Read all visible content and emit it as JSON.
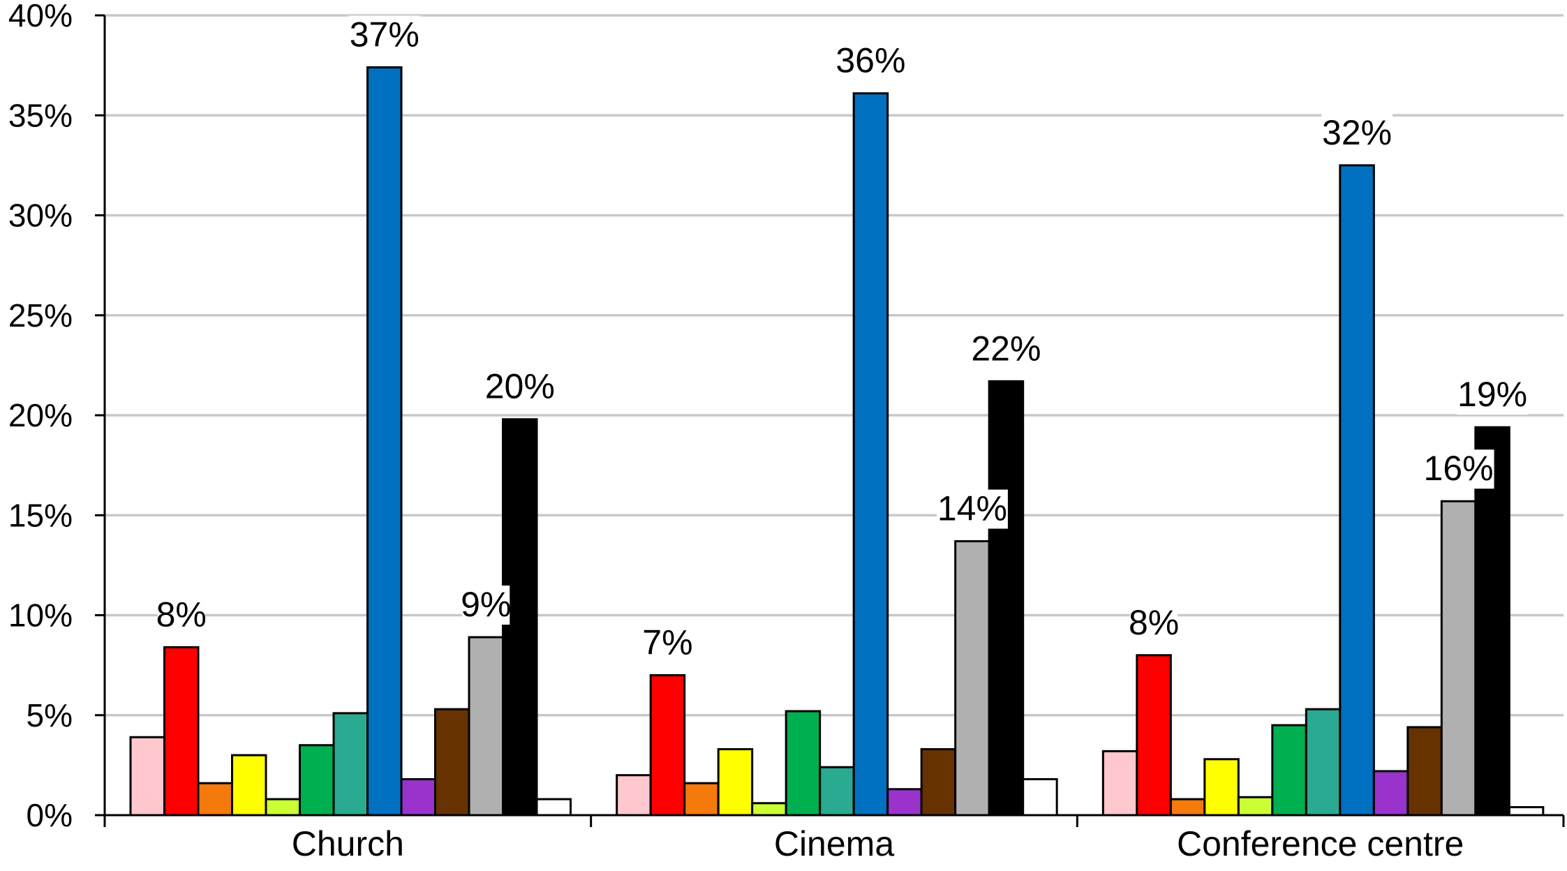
{
  "chart_data": {
    "type": "bar",
    "categories": [
      "Church",
      "Cinema",
      "Conference centre"
    ],
    "series": [
      {
        "color": "#FFC7CE",
        "values": [
          3.9,
          2.0,
          3.2
        ]
      },
      {
        "color": "#FF0000",
        "values": [
          8.4,
          7.0,
          8.0
        ]
      },
      {
        "color": "#F47A0C",
        "values": [
          1.6,
          1.6,
          0.8
        ]
      },
      {
        "color": "#FFFF00",
        "values": [
          3.0,
          3.3,
          2.8
        ]
      },
      {
        "color": "#CCFF33",
        "values": [
          0.8,
          0.6,
          0.9
        ]
      },
      {
        "color": "#00B050",
        "values": [
          3.5,
          5.2,
          4.5
        ]
      },
      {
        "color": "#2AAA90",
        "values": [
          5.1,
          2.4,
          5.3
        ]
      },
      {
        "color": "#0070C0",
        "values": [
          37.4,
          36.1,
          32.5
        ]
      },
      {
        "color": "#9933CC",
        "values": [
          1.8,
          1.3,
          2.2
        ]
      },
      {
        "color": "#663300",
        "values": [
          5.3,
          3.3,
          4.4
        ]
      },
      {
        "color": "#B0B0B0",
        "values": [
          8.9,
          13.7,
          15.7
        ]
      },
      {
        "color": "#000000",
        "values": [
          19.8,
          21.7,
          19.4
        ]
      },
      {
        "color": "#FFFFFF",
        "values": [
          0.8,
          1.8,
          0.4
        ]
      }
    ],
    "data_labels": [
      {
        "category": 0,
        "series": 1,
        "text": "8%"
      },
      {
        "category": 0,
        "series": 7,
        "text": "37%"
      },
      {
        "category": 0,
        "series": 10,
        "text": "9%"
      },
      {
        "category": 0,
        "series": 11,
        "text": "20%"
      },
      {
        "category": 1,
        "series": 1,
        "text": "7%"
      },
      {
        "category": 1,
        "series": 7,
        "text": "36%"
      },
      {
        "category": 1,
        "series": 10,
        "text": "14%"
      },
      {
        "category": 1,
        "series": 11,
        "text": "22%"
      },
      {
        "category": 2,
        "series": 1,
        "text": "8%"
      },
      {
        "category": 2,
        "series": 7,
        "text": "32%"
      },
      {
        "category": 2,
        "series": 10,
        "text": "16%"
      },
      {
        "category": 2,
        "series": 11,
        "text": "19%"
      }
    ],
    "y_ticks": [
      "0%",
      "5%",
      "10%",
      "15%",
      "20%",
      "25%",
      "30%",
      "35%",
      "40%"
    ],
    "ylim": [
      0,
      40
    ],
    "grid": true,
    "gridline_color": "#C8C8C8",
    "bar_outline_color": "#000000"
  }
}
